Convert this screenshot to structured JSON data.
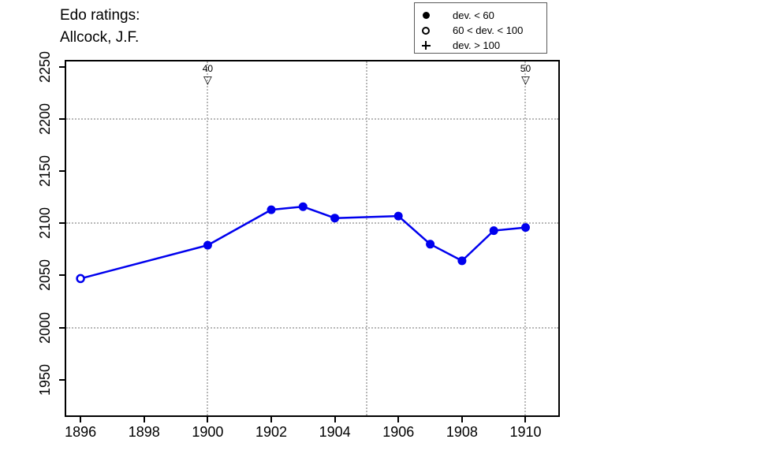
{
  "title": {
    "line1": "Edo ratings:",
    "line2": "Allcock, J.F."
  },
  "legend": {
    "items": [
      {
        "symbol": "filled-circle",
        "label": "dev. < 60"
      },
      {
        "symbol": "open-circle",
        "label": "60 < dev. < 100"
      },
      {
        "symbol": "plus",
        "label": "dev. > 100"
      }
    ]
  },
  "colors": {
    "line": "#0000ee",
    "grid": "#b8b8b8",
    "text": "#000000",
    "background": "#ffffff"
  },
  "chart_data": {
    "type": "line",
    "title": "Edo ratings: Allcock, J.F.",
    "xlabel": "",
    "ylabel": "",
    "xlim": [
      1895.55,
      1911.03
    ],
    "ylim": [
      1915.7,
      2255.3
    ],
    "x_ticks": [
      1896,
      1898,
      1900,
      1902,
      1904,
      1906,
      1908,
      1910
    ],
    "y_ticks": [
      1950,
      2000,
      2050,
      2100,
      2150,
      2200,
      2250
    ],
    "grid": {
      "style": "dotted",
      "x_values": [
        1900,
        1905,
        1910
      ],
      "y_values": [
        2000,
        2100,
        2200
      ]
    },
    "legend_position": "top-right",
    "series": [
      {
        "name": "Edo rating",
        "color": "#0000ee",
        "points": [
          {
            "year": 1896,
            "rating": 2047,
            "marker": "open-circle"
          },
          {
            "year": 1900,
            "rating": 2079,
            "marker": "filled-circle"
          },
          {
            "year": 1902,
            "rating": 2113,
            "marker": "filled-circle"
          },
          {
            "year": 1903,
            "rating": 2116,
            "marker": "filled-circle"
          },
          {
            "year": 1904,
            "rating": 2105,
            "marker": "filled-circle"
          },
          {
            "year": 1906,
            "rating": 2107,
            "marker": "filled-circle"
          },
          {
            "year": 1907,
            "rating": 2080,
            "marker": "filled-circle"
          },
          {
            "year": 1908,
            "rating": 2064,
            "marker": "filled-circle"
          },
          {
            "year": 1909,
            "rating": 2093,
            "marker": "filled-circle"
          },
          {
            "year": 1910,
            "rating": 2096,
            "marker": "filled-circle"
          }
        ]
      }
    ],
    "annotations": [
      {
        "year": 1900,
        "label": "40",
        "marker": "open-down-triangle"
      },
      {
        "year": 1910,
        "label": "50",
        "marker": "open-down-triangle"
      }
    ]
  }
}
